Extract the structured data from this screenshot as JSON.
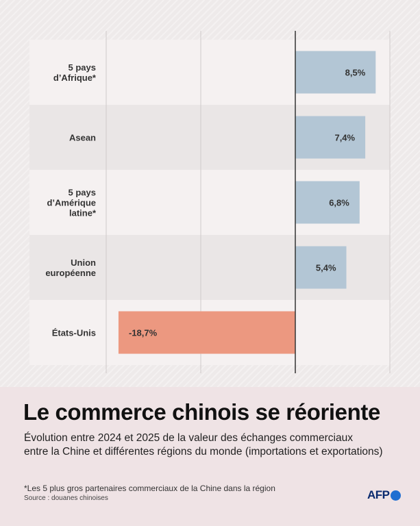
{
  "title": "Le commerce chinois se réoriente",
  "subtitle_lines": [
    "Évolution entre 2024 et 2025 de la valeur des échanges commerciaux",
    "entre la Chine et différentes régions du monde (importations et exportations)"
  ],
  "footnote": "*Les 5 plus gros partenaires commerciaux de la Chine dans la région",
  "source": "Source : douanes chinoises",
  "logo_text": "AFP",
  "colors": {
    "positive": "#b3c6d5",
    "negative": "#ec9880",
    "band_light": "#f5f1f1",
    "band_dark": "#eae6e6",
    "grid": "#d0cbcb",
    "zero_line": "#333333",
    "logo_dot": "#1f6fd1"
  },
  "chart_data": {
    "type": "bar",
    "orientation": "horizontal",
    "unit": "%",
    "categories": [
      [
        "5 pays",
        "d’Afrique*"
      ],
      [
        "Asean"
      ],
      [
        "5 pays",
        "d’Amérique",
        "latine*"
      ],
      [
        "Union",
        "européenne"
      ],
      [
        "États-Unis"
      ]
    ],
    "values": [
      8.5,
      7.4,
      6.8,
      5.4,
      -18.7
    ],
    "value_labels": [
      "8,5%",
      "7,4%",
      "6,8%",
      "5,4%",
      "-18,7%"
    ],
    "xlim": [
      -20,
      10
    ],
    "gridlines": [
      -20,
      -10,
      10
    ],
    "zero_line": true
  }
}
